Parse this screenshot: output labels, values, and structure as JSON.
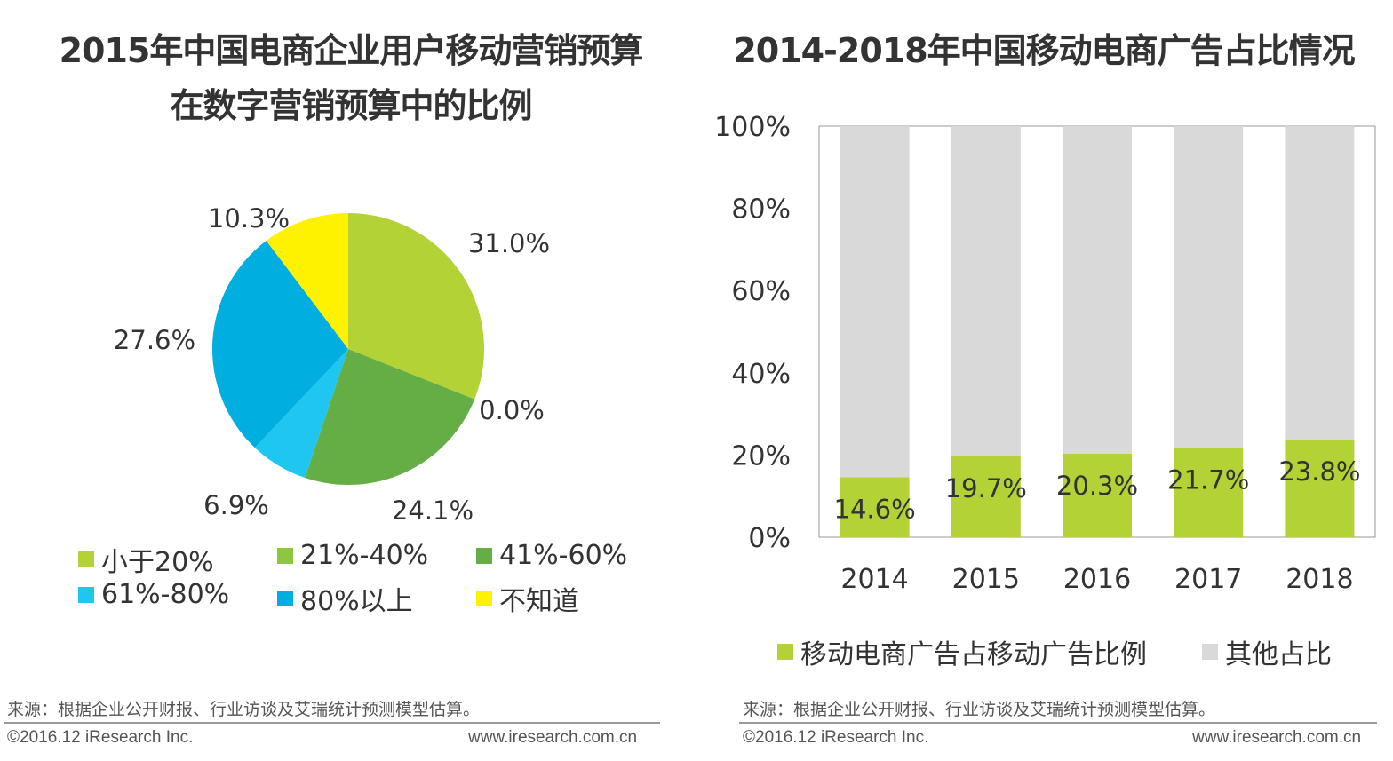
{
  "chart_data": [
    {
      "type": "pie",
      "title_line1": "2015年中国电商企业用户移动营销预算",
      "title_line2": "在数字营销预算中的比例",
      "slices": [
        {
          "label": "小于20%",
          "value": 31.0,
          "display": "31.0%",
          "color": "#b2d235"
        },
        {
          "label": "21%-40%",
          "value": 0.0,
          "display": "0.0%",
          "color": "#8dc640"
        },
        {
          "label": "41%-60%",
          "value": 24.1,
          "display": "24.1%",
          "color": "#65ad45"
        },
        {
          "label": "61%-80%",
          "value": 6.9,
          "display": "6.9%",
          "color": "#1ec6f0"
        },
        {
          "label": "80%以上",
          "value": 27.6,
          "display": "27.6%",
          "color": "#00aee0"
        },
        {
          "label": "不知道",
          "value": 10.3,
          "display": "10.3%",
          "color": "#fff200"
        }
      ],
      "legend_placement": "bottom"
    },
    {
      "type": "bar",
      "stacked": true,
      "title": "2014-2018年中国移动电商广告占比情况",
      "categories": [
        "2014",
        "2015",
        "2016",
        "2017",
        "2018"
      ],
      "series": [
        {
          "name": "移动电商广告占移动广告比例",
          "values": [
            14.6,
            19.7,
            20.3,
            21.7,
            23.8
          ],
          "labels": [
            "14.6%",
            "19.7%",
            "20.3%",
            "21.7%",
            "23.8%"
          ],
          "color": "#b2d235"
        },
        {
          "name": "其他占比",
          "values": [
            85.4,
            80.3,
            79.7,
            78.3,
            76.2
          ],
          "color": "#d9d9d9"
        }
      ],
      "yticks": [
        "0%",
        "20%",
        "40%",
        "60%",
        "80%",
        "100%"
      ],
      "ylim": [
        0,
        100
      ],
      "legend_placement": "bottom"
    }
  ],
  "footer": {
    "source": "来源：根据企业公开财报、行业访谈及艾瑞统计预测模型估算。",
    "copyright": "©2016.12 iResearch Inc.",
    "website": "www.iresearch.com.cn"
  }
}
